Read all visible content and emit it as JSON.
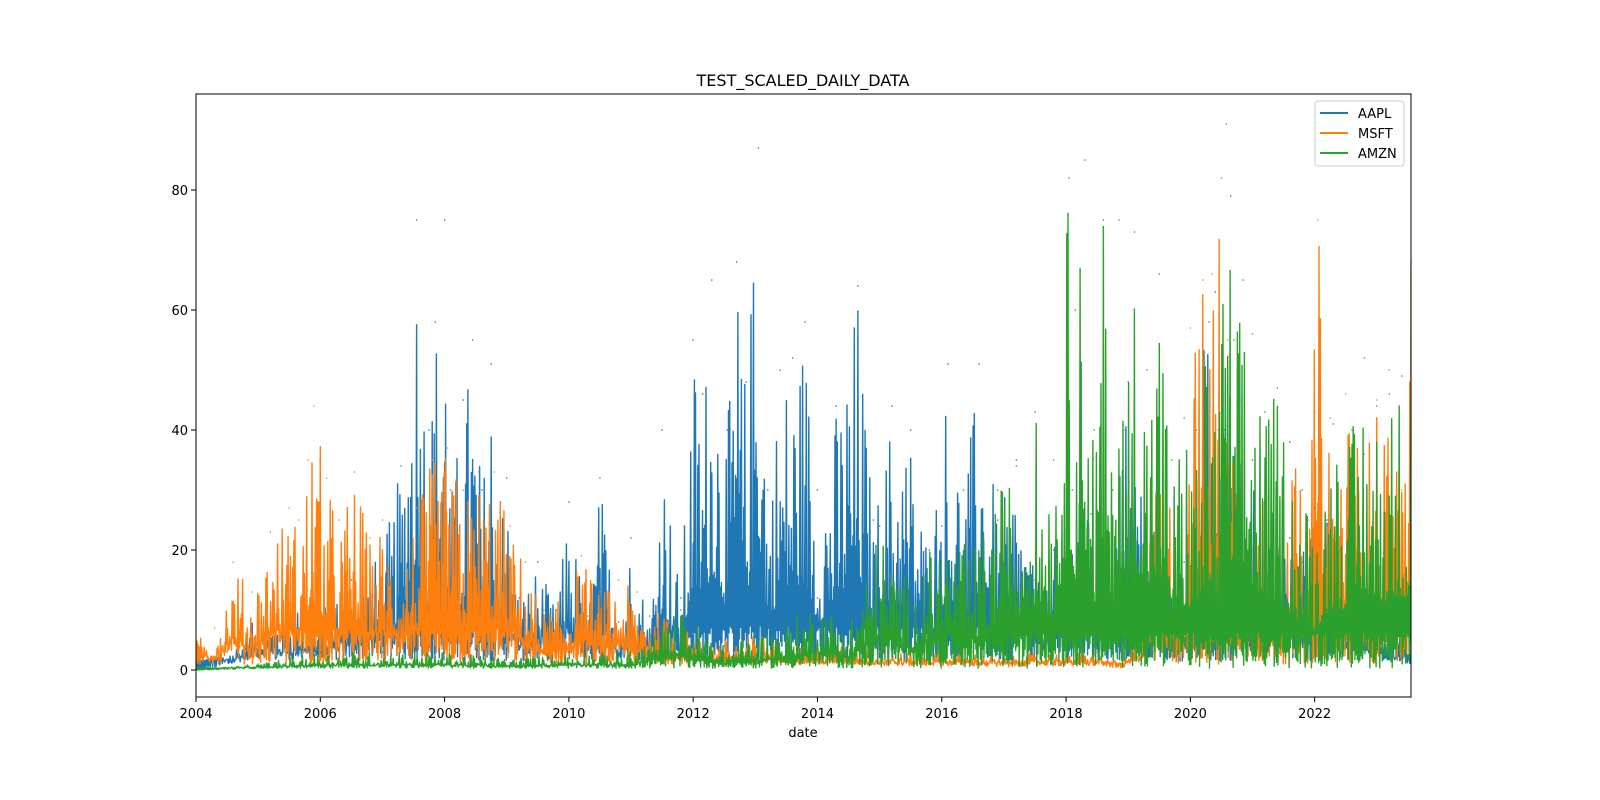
{
  "chart_data": {
    "type": "line",
    "title": "TEST_SCALED_DAILY_DATA",
    "xlabel": "date",
    "ylabel": "",
    "xlim": [
      2004.0,
      2023.55
    ],
    "ylim": [
      -4.5,
      96
    ],
    "x_ticks": [
      2004,
      2006,
      2008,
      2010,
      2012,
      2014,
      2016,
      2018,
      2020,
      2022
    ],
    "y_ticks": [
      0,
      20,
      40,
      60,
      80
    ],
    "legend_position": "top-right",
    "grid": false,
    "series": [
      {
        "name": "AAPL",
        "color": "#1f77b4",
        "x": [
          2004.0,
          2004.5,
          2005.0,
          2005.5,
          2006.0,
          2006.5,
          2007.0,
          2007.3,
          2007.55,
          2007.75,
          2007.85,
          2008.0,
          2008.1,
          2008.3,
          2008.45,
          2008.6,
          2008.75,
          2008.9,
          2009.0,
          2009.2,
          2009.5,
          2009.8,
          2010.0,
          2010.3,
          2010.5,
          2010.8,
          2011.0,
          2011.3,
          2011.5,
          2011.8,
          2012.0,
          2012.15,
          2012.3,
          2012.55,
          2012.7,
          2012.85,
          2013.05,
          2013.2,
          2013.4,
          2013.6,
          2013.8,
          2014.0,
          2014.3,
          2014.65,
          2014.9,
          2015.2,
          2015.5,
          2015.8,
          2016.1,
          2016.35,
          2016.6,
          2016.9,
          2017.2,
          2017.5,
          2017.8,
          2018.1,
          2018.4,
          2018.7,
          2019.0,
          2019.3,
          2019.6,
          2019.9,
          2020.0,
          2020.2,
          2020.4,
          2020.55,
          2020.65,
          2020.8,
          2021.0,
          2021.2,
          2021.4,
          2021.6,
          2021.8,
          2022.0,
          2022.2,
          2022.4,
          2022.6,
          2022.8,
          2023.0,
          2023.2,
          2023.4,
          2023.55
        ],
        "values": [
          0,
          3,
          9,
          11,
          10,
          15,
          20,
          34,
          75,
          40,
          58,
          75,
          30,
          45,
          55,
          30,
          51,
          28,
          32,
          12,
          18,
          10,
          28,
          9,
          32,
          8,
          22,
          9,
          40,
          12,
          55,
          46,
          65,
          40,
          68,
          48,
          87,
          30,
          50,
          52,
          58,
          30,
          44,
          64,
          25,
          44,
          40,
          20,
          51,
          30,
          51,
          25,
          35,
          15,
          20,
          30,
          26,
          20,
          48,
          30,
          20,
          18,
          12,
          55,
          63,
          40,
          79,
          45,
          35,
          20,
          28,
          22,
          18,
          43,
          25,
          12,
          16,
          10,
          14,
          8,
          6,
          4
        ]
      },
      {
        "name": "MSFT",
        "color": "#ff7f0e",
        "x": [
          2004.0,
          2004.3,
          2004.6,
          2004.9,
          2005.2,
          2005.5,
          2005.65,
          2005.8,
          2005.9,
          2006.1,
          2006.3,
          2006.55,
          2006.8,
          2007.0,
          2007.3,
          2007.55,
          2007.8,
          2008.05,
          2008.3,
          2008.55,
          2008.8,
          2009.05,
          2009.3,
          2009.6,
          2009.9,
          2010.2,
          2010.5,
          2010.8,
          2011.1,
          2011.4,
          2011.7,
          2012.0,
          2012.5,
          2013.0,
          2013.5,
          2014.0,
          2014.5,
          2015.0,
          2015.5,
          2016.0,
          2016.5,
          2017.0,
          2017.5,
          2018.0,
          2018.5,
          2018.9,
          2019.2,
          2019.5,
          2019.8,
          2020.0,
          2020.2,
          2020.35,
          2020.5,
          2020.6,
          2020.8,
          2021.0,
          2021.3,
          2021.6,
          2021.9,
          2022.05,
          2022.25,
          2022.5,
          2022.8,
          2023.0,
          2023.2,
          2023.4,
          2023.55
        ],
        "values": [
          5,
          7,
          18,
          13,
          23,
          27,
          25,
          35,
          44,
          32,
          25,
          33,
          22,
          25,
          20,
          27,
          35,
          37,
          30,
          33,
          33,
          24,
          18,
          10,
          12,
          19,
          13,
          15,
          13,
          10,
          8,
          6,
          5,
          6,
          5,
          4,
          4,
          3,
          3,
          3,
          3,
          2,
          3,
          3,
          3,
          1,
          7,
          41,
          20,
          57,
          65,
          66,
          82,
          55,
          38,
          20,
          35,
          38,
          25,
          75,
          42,
          46,
          36,
          45,
          50,
          30,
          68
        ]
      },
      {
        "name": "AMZN",
        "color": "#2ca02c",
        "x": [
          2004.0,
          2005.0,
          2006.0,
          2007.0,
          2008.0,
          2009.0,
          2010.0,
          2011.0,
          2011.8,
          2012.5,
          2013.0,
          2013.5,
          2014.0,
          2014.5,
          2015.0,
          2015.5,
          2016.0,
          2016.5,
          2016.9,
          2017.2,
          2017.5,
          2017.8,
          2018.05,
          2018.15,
          2018.3,
          2018.45,
          2018.6,
          2018.75,
          2018.85,
          2018.95,
          2019.1,
          2019.3,
          2019.5,
          2019.7,
          2019.9,
          2020.1,
          2020.3,
          2020.45,
          2020.58,
          2020.7,
          2020.85,
          2021.0,
          2021.2,
          2021.4,
          2021.6,
          2021.8,
          2022.0,
          2022.3,
          2022.6,
          2022.8,
          2023.0,
          2023.2,
          2023.4,
          2023.55
        ],
        "values": [
          0,
          1,
          3,
          3,
          3,
          2,
          3,
          3,
          10,
          4,
          6,
          8,
          12,
          8,
          24,
          14,
          24,
          20,
          30,
          34,
          43,
          35,
          82,
          60,
          85,
          40,
          75,
          30,
          75,
          40,
          73,
          50,
          66,
          35,
          42,
          40,
          58,
          40,
          91,
          55,
          65,
          56,
          43,
          47,
          38,
          30,
          27,
          41,
          40,
          52,
          44,
          46,
          49,
          45
        ]
      }
    ]
  }
}
